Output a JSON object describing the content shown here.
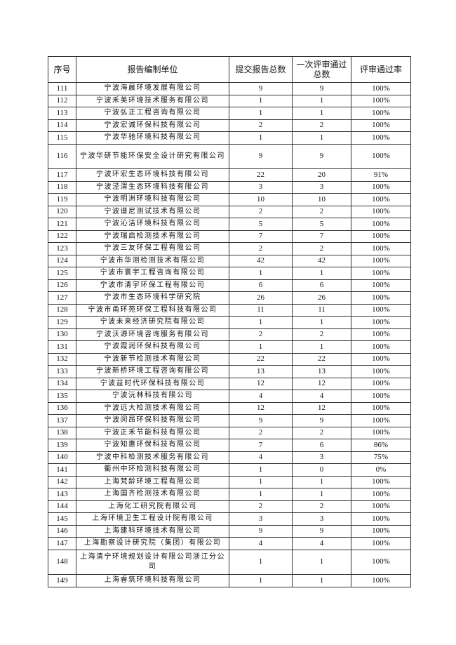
{
  "headers": [
    "序号",
    "报告编制单位",
    "提交报告总数",
    "一次评审通过总数",
    "评审通过率"
  ],
  "rows": [
    [
      "111",
      "宁波海晨环境发展有限公司",
      "9",
      "9",
      "100%"
    ],
    [
      "112",
      "宁波禾美环境技术服务有限公司",
      "1",
      "1",
      "100%"
    ],
    [
      "113",
      "宁波弘正工程咨询有限公司",
      "1",
      "1",
      "100%"
    ],
    [
      "114",
      "宁波宏诚环保科技有限公司",
      "2",
      "2",
      "100%"
    ],
    [
      "115",
      "宁波华驰环境科技有限公司",
      "1",
      "1",
      "100%"
    ],
    [
      "116",
      "宁波华研节能环保安全设计研究有限公司",
      "9",
      "9",
      "100%"
    ],
    [
      "117",
      "宁波环宏生态环境科技有限公司",
      "22",
      "20",
      "91%"
    ],
    [
      "118",
      "宁波泾渭生态环境科技有限公司",
      "3",
      "3",
      "100%"
    ],
    [
      "119",
      "宁波明洲环境科技有限公司",
      "10",
      "10",
      "100%"
    ],
    [
      "120",
      "宁波谱尼测试技术有限公司",
      "2",
      "2",
      "100%"
    ],
    [
      "121",
      "宁波沁洁环境科技有限公司",
      "5",
      "5",
      "100%"
    ],
    [
      "122",
      "宁波瑞启检测技术有限公司",
      "7",
      "7",
      "100%"
    ],
    [
      "123",
      "宁波三友环保工程有限公司",
      "2",
      "2",
      "100%"
    ],
    [
      "124",
      "宁波市华测检测技术有限公司",
      "42",
      "42",
      "100%"
    ],
    [
      "125",
      "宁波市寰宇工程咨询有限公司",
      "1",
      "1",
      "100%"
    ],
    [
      "126",
      "宁波市清宇环保工程有限公司",
      "6",
      "6",
      "100%"
    ],
    [
      "127",
      "宁波市生态环境科学研究院",
      "26",
      "26",
      "100%"
    ],
    [
      "128",
      "宁波市甬环苑环保工程科技有限公司",
      "11",
      "11",
      "100%"
    ],
    [
      "129",
      "宁波未来经济研究院有限公司",
      "1",
      "1",
      "100%"
    ],
    [
      "130",
      "宁波沃源环境咨询服务有限公司",
      "2",
      "2",
      "100%"
    ],
    [
      "131",
      "宁波霞润环保科技有限公司",
      "1",
      "1",
      "100%"
    ],
    [
      "132",
      "宁波新节检测技术有限公司",
      "22",
      "22",
      "100%"
    ],
    [
      "133",
      "宁波新桥环境工程咨询有限公司",
      "13",
      "13",
      "100%"
    ],
    [
      "134",
      "宁波益时代环保科技有限公司",
      "12",
      "12",
      "100%"
    ],
    [
      "135",
      "宁波沅林科技有限公司",
      "4",
      "4",
      "100%"
    ],
    [
      "136",
      "宁波远大检测技术有限公司",
      "12",
      "12",
      "100%"
    ],
    [
      "137",
      "宁波闵昂环保科技有限公司",
      "9",
      "9",
      "100%"
    ],
    [
      "138",
      "宁波正禾节能科技有限公司",
      "2",
      "2",
      "100%"
    ],
    [
      "139",
      "宁波知惠环保科技有限公司",
      "7",
      "6",
      "86%"
    ],
    [
      "140",
      "宁波中科检测技术服务有限公司",
      "4",
      "3",
      "75%"
    ],
    [
      "141",
      "衢州中环检测科技有限公司",
      "1",
      "0",
      "0%"
    ],
    [
      "142",
      "上海梵龄环境工程有限公司",
      "1",
      "1",
      "100%"
    ],
    [
      "143",
      "上海国齐检测技术有限公司",
      "1",
      "1",
      "100%"
    ],
    [
      "144",
      "上海化工研究院有限公司",
      "2",
      "2",
      "100%"
    ],
    [
      "145",
      "上海环境卫生工程设计院有限公司",
      "3",
      "3",
      "100%"
    ],
    [
      "146",
      "上海建科环境技术有限公司",
      "9",
      "9",
      "100%"
    ],
    [
      "147",
      "上海勘察设计研究院（集团）有限公司",
      "4",
      "4",
      "100%"
    ],
    [
      "148",
      "上海清宁环境规划设计有限公司浙江分公司",
      "1",
      "1",
      "100%"
    ],
    [
      "149",
      "上海睿筑环境科技有限公司",
      "1",
      "1",
      "100%"
    ]
  ]
}
